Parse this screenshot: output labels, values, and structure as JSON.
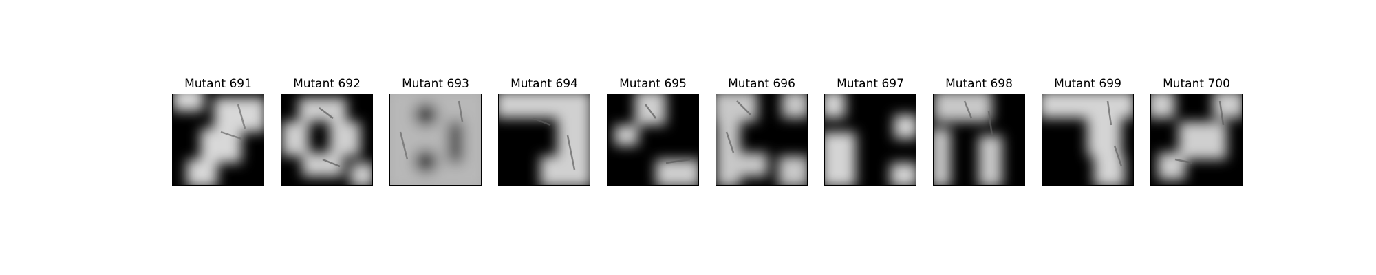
{
  "panels": [
    {
      "title": "Mutant 691",
      "id": "691"
    },
    {
      "title": "Mutant 692",
      "id": "692"
    },
    {
      "title": "Mutant 693",
      "id": "693"
    },
    {
      "title": "Mutant 694",
      "id": "694"
    },
    {
      "title": "Mutant 695",
      "id": "695"
    },
    {
      "title": "Mutant 696",
      "id": "696"
    },
    {
      "title": "Mutant 697",
      "id": "697"
    },
    {
      "title": "Mutant 698",
      "id": "698"
    },
    {
      "title": "Mutant 699",
      "id": "699"
    },
    {
      "title": "Mutant 700",
      "id": "700"
    }
  ],
  "colors": {
    "background": "#ffffff",
    "image_dark": "#000000",
    "image_light": "#e8e8e8"
  }
}
